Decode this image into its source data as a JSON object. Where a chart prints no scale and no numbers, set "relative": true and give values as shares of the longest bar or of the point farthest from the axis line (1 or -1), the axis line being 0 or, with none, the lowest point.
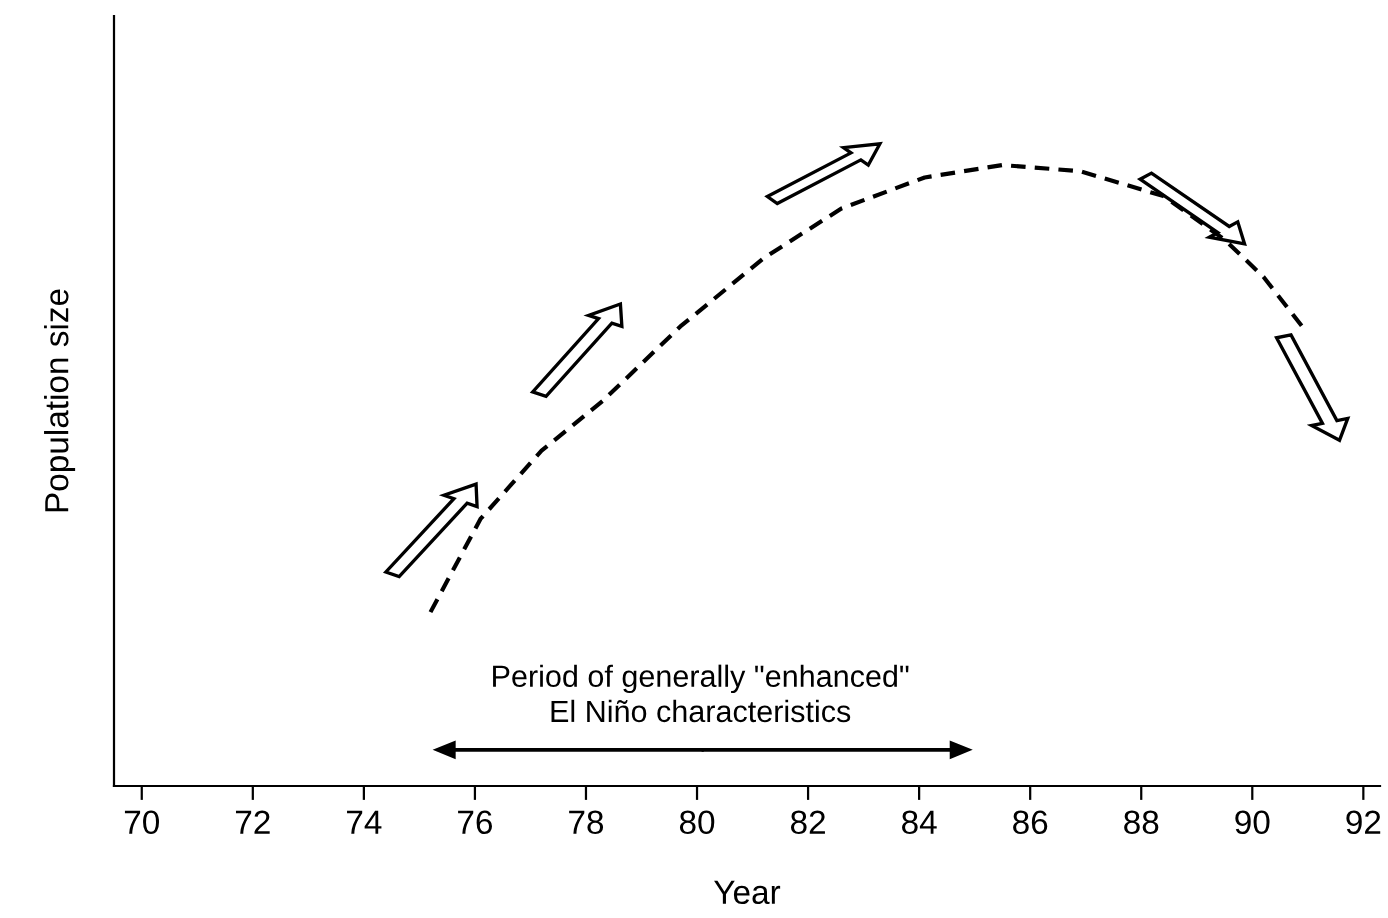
{
  "chart_data": {
    "type": "line",
    "relative": true,
    "xlabel": "Year",
    "ylabel": "Population size",
    "x": [
      75.2,
      76.1,
      77.2,
      78.3,
      79.7,
      81.2,
      82.6,
      84.1,
      85.5,
      86.9,
      88.4,
      89.5,
      90.2,
      90.9
    ],
    "series": [
      {
        "color": "#000000",
        "values": [
          0.28,
          0.43,
          0.54,
          0.62,
          0.74,
          0.85,
          0.93,
          0.98,
          1.0,
          0.99,
          0.95,
          0.88,
          0.82,
          0.74
        ]
      }
    ],
    "line_style": "dashed",
    "marker": "none",
    "grid": false,
    "legend": false,
    "xlim": [
      69.5,
      92.3
    ],
    "xticks": [
      70,
      72,
      74,
      76,
      78,
      80,
      82,
      84,
      86,
      88,
      90,
      92
    ],
    "annotations": [
      "Period of generally \"enhanced\"\nEl Niño characteristics"
    ]
  }
}
